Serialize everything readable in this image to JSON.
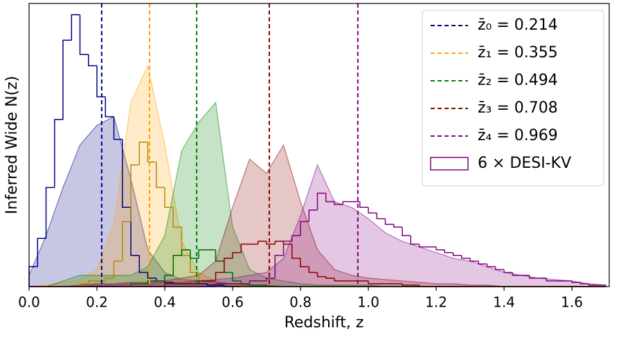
{
  "chart_data": {
    "type": "area",
    "xlabel": "Redshift, z",
    "ylabel": "Inferred Wide N(z)",
    "xlim": [
      0,
      1.71
    ],
    "ylim": [
      0,
      100
    ],
    "xticks": [
      {
        "value": 0,
        "label": "0.0"
      },
      0.2,
      0.4,
      0.6,
      0.8,
      {
        "value": 1,
        "label": "1.0"
      },
      1.2,
      1.4,
      1.6
    ],
    "legend": "upper right",
    "x": [
      0,
      0.05,
      0.1,
      0.15,
      0.2,
      0.25,
      0.3,
      0.35,
      0.4,
      0.45,
      0.5,
      0.55,
      0.6,
      0.65,
      0.7,
      0.75,
      0.8,
      0.85,
      0.9,
      0.95,
      1,
      1.05,
      1.1,
      1.15,
      1.2,
      1.25,
      1.3,
      1.35,
      1.4,
      1.45,
      1.5,
      1.55,
      1.6,
      1.65,
      1.7
    ],
    "series": [
      {
        "name": "z̄₀ = 0.214",
        "color": "#000080",
        "mean": 0.214,
        "values": [
          4,
          18,
          35,
          50,
          57,
          60,
          38,
          13,
          5,
          2.5,
          2,
          1.5,
          1,
          0.5,
          0.5,
          0,
          0,
          0,
          0,
          0,
          0,
          0,
          0,
          0,
          0,
          0,
          0,
          0,
          0,
          0,
          0,
          0,
          0,
          0,
          0
        ]
      },
      {
        "name": "z̄₁ = 0.355",
        "color": "#ffa500",
        "mean": 0.355,
        "values": [
          0,
          0.5,
          1.5,
          2.5,
          6,
          22,
          65,
          78,
          50,
          16,
          5,
          2,
          1,
          0.5,
          0.5,
          0,
          0,
          0,
          0,
          0,
          0,
          0,
          0,
          0,
          0,
          0,
          0,
          0,
          0,
          0,
          0,
          0,
          0,
          0,
          0
        ]
      },
      {
        "name": "z̄₂ = 0.494",
        "color": "#008000",
        "mean": 0.494,
        "values": [
          0,
          0,
          2,
          4,
          4,
          4,
          4,
          7,
          18,
          48,
          58,
          65,
          21,
          6,
          3,
          2,
          1,
          0.5,
          0.5,
          0.5,
          0.5,
          0,
          0,
          0,
          0,
          0,
          0,
          0,
          0,
          0,
          0,
          0,
          0,
          0,
          0
        ]
      },
      {
        "name": "z̄₃ = 0.708",
        "color": "#8b0000",
        "mean": 0.708,
        "values": [
          0,
          0,
          0,
          0.5,
          1,
          1,
          1.5,
          1.5,
          2,
          3,
          4,
          9,
          28,
          45,
          40,
          50,
          30,
          13,
          6,
          4,
          3,
          2.5,
          2,
          1.5,
          1,
          1,
          0.5,
          0.5,
          0,
          0,
          0,
          0,
          0,
          0,
          0
        ]
      },
      {
        "name": "z̄₄ = 0.969",
        "color": "#800080",
        "mean": 0.969,
        "values": [
          0,
          0,
          0,
          0,
          0.5,
          0.5,
          1,
          1,
          1.5,
          1.5,
          2,
          2.5,
          3,
          4,
          5,
          10,
          25,
          43,
          30,
          28,
          24,
          19,
          16,
          14,
          12,
          10,
          9,
          7,
          5,
          4,
          3,
          2.5,
          2,
          1,
          0.5
        ]
      }
    ],
    "histogram": {
      "name": "6 × DESI-KV",
      "color": "#800080",
      "bins": [
        0,
        0.025,
        0.05,
        0.075,
        0.1,
        0.125,
        0.15,
        0.175,
        0.2,
        0.225,
        0.25,
        0.275,
        0.3,
        0.325,
        0.35,
        0.375,
        0.4,
        0.425,
        0.45,
        0.475,
        0.5,
        0.525,
        0.55,
        0.575,
        0.6,
        0.625,
        0.65,
        0.675,
        0.7,
        0.725,
        0.75,
        0.775,
        0.8,
        0.825,
        0.85,
        0.875,
        0.9,
        0.925,
        0.95,
        0.975,
        1,
        1.025,
        1.05,
        1.075,
        1.1,
        1.125,
        1.15,
        1.175,
        1.2,
        1.225,
        1.25,
        1.275,
        1.3,
        1.325,
        1.35,
        1.375,
        1.4,
        1.425,
        1.45,
        1.475,
        1.5,
        1.525,
        1.55,
        1.575,
        1.6,
        1.625,
        1.65,
        1.675,
        1.7
      ],
      "series": [
        {
          "color": "#000080",
          "counts": [
            7,
            17,
            35,
            59,
            87,
            96,
            82,
            78,
            67,
            60,
            52,
            28,
            11,
            5,
            3,
            2,
            1.5,
            1,
            1,
            1,
            1,
            0.5,
            0.5,
            0,
            0,
            0,
            0,
            0,
            0,
            0,
            0,
            0,
            0,
            0,
            0,
            0,
            0,
            0,
            0,
            0,
            0,
            0,
            0,
            0,
            0,
            0,
            0,
            0,
            0,
            0,
            0,
            0,
            0,
            0,
            0,
            0,
            0,
            0,
            0,
            0,
            0,
            0,
            0,
            0,
            0,
            0,
            0,
            0
          ]
        },
        {
          "color": "#b8860b",
          "counts": [
            0,
            0,
            0,
            0,
            0,
            0,
            1,
            2,
            2,
            3,
            9,
            23,
            43,
            51,
            44,
            35,
            28,
            21,
            11,
            5,
            2,
            2,
            1,
            1,
            0.5,
            0,
            0,
            0,
            0,
            0,
            0,
            0,
            0,
            0,
            0,
            0,
            0,
            0,
            0,
            0,
            0,
            0,
            0,
            0,
            0,
            0,
            0,
            0,
            0,
            0,
            0,
            0,
            0,
            0,
            0,
            0,
            0,
            0,
            0,
            0,
            0,
            0,
            0,
            0,
            0,
            0,
            0,
            0
          ]
        },
        {
          "color": "#006400",
          "counts": [
            0,
            0,
            0,
            0,
            0,
            0,
            0,
            0,
            0,
            0,
            0,
            0,
            1,
            1,
            2,
            2,
            4,
            11,
            13,
            10,
            13,
            13,
            9,
            5,
            2,
            1,
            0.5,
            0.5,
            0,
            0,
            0,
            0,
            0,
            0,
            0,
            0,
            0,
            0,
            0,
            0,
            0,
            0,
            0,
            0,
            0,
            0,
            0,
            0,
            0,
            0,
            0,
            0,
            0,
            0,
            0,
            0,
            0,
            0,
            0,
            0,
            0,
            0,
            0,
            0,
            0,
            0,
            0,
            0
          ]
        },
        {
          "color": "#8b0000",
          "counts": [
            0,
            0,
            0,
            0,
            0,
            0,
            0,
            0,
            0,
            0,
            0,
            0,
            0,
            0,
            0,
            0,
            1,
            1,
            1,
            1,
            2,
            2,
            5,
            10,
            12,
            15,
            15,
            16,
            15,
            16,
            15,
            10,
            7,
            5,
            3.5,
            3,
            2,
            2,
            2,
            2,
            1,
            1,
            1,
            1,
            0.5,
            0.5,
            0,
            0,
            0,
            0,
            0,
            0,
            0,
            0,
            0,
            0,
            0,
            0,
            0,
            0,
            0,
            0,
            0,
            0,
            0,
            0,
            0,
            0
          ]
        },
        {
          "color": "#800080",
          "counts": [
            0,
            0,
            0,
            0,
            0,
            0,
            0,
            0,
            0,
            0,
            0,
            0,
            0,
            0,
            0,
            0,
            0,
            0,
            0,
            0,
            0,
            0,
            1,
            1,
            1,
            1,
            2,
            2,
            3,
            11,
            16,
            18,
            23,
            27,
            33,
            30,
            29,
            30,
            30,
            28,
            26,
            24,
            22,
            21,
            18,
            15,
            14,
            14,
            13,
            12,
            11,
            10,
            9,
            8,
            7,
            6,
            5,
            4,
            4,
            3,
            3,
            2,
            2,
            2,
            1.5,
            1,
            0.5,
            0.5
          ]
        }
      ]
    }
  }
}
